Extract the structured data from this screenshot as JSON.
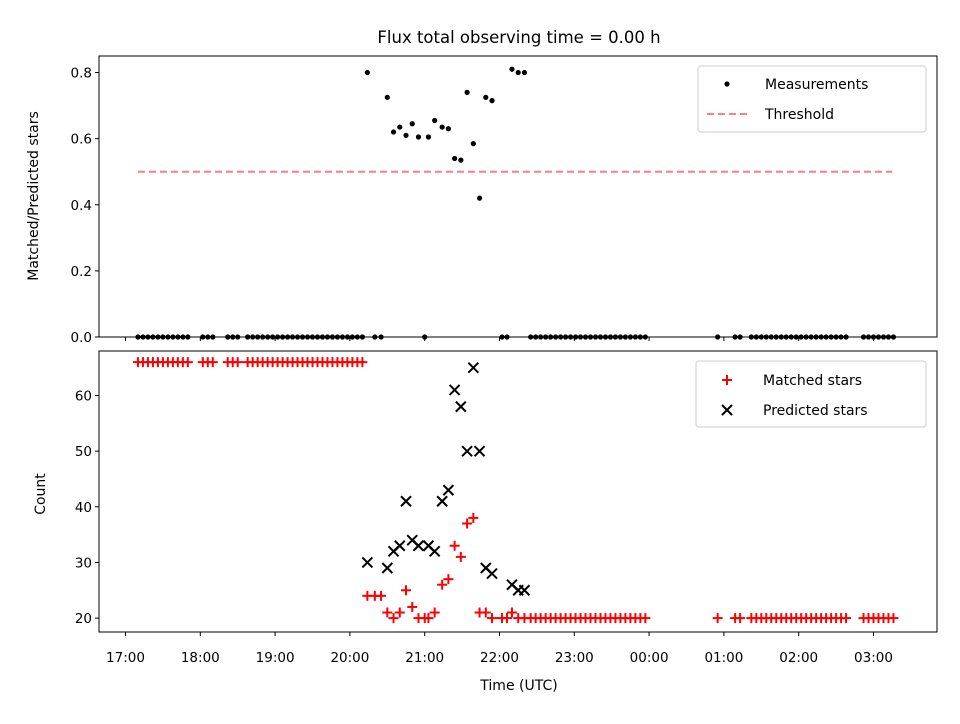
{
  "chart_data": [
    {
      "type": "scatter",
      "title": "Flux total observing time = 0.00 h",
      "ylabel": "Matched/Predicted stars",
      "ylim": [
        0,
        0.85
      ],
      "yticks": [
        "0.0",
        "0.2",
        "0.4",
        "0.6",
        "0.8"
      ],
      "threshold": {
        "value": 0.5,
        "x_start": "17:10",
        "x_end": "03:15"
      },
      "legend": {
        "placement": "upper right",
        "entries": [
          "Measurements",
          "Threshold"
        ]
      },
      "series": [
        {
          "name": "Measurements",
          "color": "#000000",
          "points": [
            [
              "17:10",
              0.0
            ],
            [
              "17:14",
              0.0
            ],
            [
              "17:18",
              0.0
            ],
            [
              "17:22",
              0.0
            ],
            [
              "17:26",
              0.0
            ],
            [
              "17:30",
              0.0
            ],
            [
              "17:34",
              0.0
            ],
            [
              "17:38",
              0.0
            ],
            [
              "17:42",
              0.0
            ],
            [
              "17:46",
              0.0
            ],
            [
              "17:50",
              0.0
            ],
            [
              "18:02",
              0.0
            ],
            [
              "18:06",
              0.0
            ],
            [
              "18:10",
              0.0
            ],
            [
              "18:22",
              0.0
            ],
            [
              "18:26",
              0.0
            ],
            [
              "18:30",
              0.0
            ],
            [
              "18:38",
              0.0
            ],
            [
              "18:42",
              0.0
            ],
            [
              "18:46",
              0.0
            ],
            [
              "18:50",
              0.0
            ],
            [
              "18:54",
              0.0
            ],
            [
              "18:58",
              0.0
            ],
            [
              "19:02",
              0.0
            ],
            [
              "19:06",
              0.0
            ],
            [
              "19:10",
              0.0
            ],
            [
              "19:14",
              0.0
            ],
            [
              "19:18",
              0.0
            ],
            [
              "19:22",
              0.0
            ],
            [
              "19:26",
              0.0
            ],
            [
              "19:30",
              0.0
            ],
            [
              "19:34",
              0.0
            ],
            [
              "19:38",
              0.0
            ],
            [
              "19:42",
              0.0
            ],
            [
              "19:46",
              0.0
            ],
            [
              "19:50",
              0.0
            ],
            [
              "19:54",
              0.0
            ],
            [
              "19:58",
              0.0
            ],
            [
              "20:02",
              0.0
            ],
            [
              "20:06",
              0.0
            ],
            [
              "20:10",
              0.0
            ],
            [
              "20:14",
              0.8
            ],
            [
              "20:20",
              0.0
            ],
            [
              "20:25",
              0.0
            ],
            [
              "20:30",
              0.725
            ],
            [
              "20:35",
              0.62
            ],
            [
              "20:40",
              0.635
            ],
            [
              "20:45",
              0.61
            ],
            [
              "20:50",
              0.645
            ],
            [
              "20:55",
              0.605
            ],
            [
              "21:00",
              0.0
            ],
            [
              "21:03",
              0.605
            ],
            [
              "21:08",
              0.655
            ],
            [
              "21:14",
              0.635
            ],
            [
              "21:19",
              0.63
            ],
            [
              "21:24",
              0.54
            ],
            [
              "21:29",
              0.535
            ],
            [
              "21:34",
              0.74
            ],
            [
              "21:39",
              0.585
            ],
            [
              "21:44",
              0.42
            ],
            [
              "21:49",
              0.725
            ],
            [
              "21:54",
              0.715
            ],
            [
              "22:02",
              0.0
            ],
            [
              "22:06",
              0.0
            ],
            [
              "22:10",
              0.81
            ],
            [
              "22:15",
              0.8
            ],
            [
              "22:20",
              0.8
            ],
            [
              "22:25",
              0.0
            ],
            [
              "22:29",
              0.0
            ],
            [
              "22:33",
              0.0
            ],
            [
              "22:37",
              0.0
            ],
            [
              "22:41",
              0.0
            ],
            [
              "22:45",
              0.0
            ],
            [
              "22:49",
              0.0
            ],
            [
              "22:53",
              0.0
            ],
            [
              "22:57",
              0.0
            ],
            [
              "23:01",
              0.0
            ],
            [
              "23:05",
              0.0
            ],
            [
              "23:09",
              0.0
            ],
            [
              "23:13",
              0.0
            ],
            [
              "23:17",
              0.0
            ],
            [
              "23:21",
              0.0
            ],
            [
              "23:25",
              0.0
            ],
            [
              "23:29",
              0.0
            ],
            [
              "23:33",
              0.0
            ],
            [
              "23:37",
              0.0
            ],
            [
              "23:41",
              0.0
            ],
            [
              "23:45",
              0.0
            ],
            [
              "23:49",
              0.0
            ],
            [
              "23:53",
              0.0
            ],
            [
              "23:57",
              0.0
            ],
            [
              "00:55",
              0.0
            ],
            [
              "01:09",
              0.0
            ],
            [
              "01:13",
              0.0
            ],
            [
              "01:22",
              0.0
            ],
            [
              "01:26",
              0.0
            ],
            [
              "01:30",
              0.0
            ],
            [
              "01:34",
              0.0
            ],
            [
              "01:38",
              0.0
            ],
            [
              "01:42",
              0.0
            ],
            [
              "01:46",
              0.0
            ],
            [
              "01:50",
              0.0
            ],
            [
              "01:54",
              0.0
            ],
            [
              "01:58",
              0.0
            ],
            [
              "02:02",
              0.0
            ],
            [
              "02:06",
              0.0
            ],
            [
              "02:10",
              0.0
            ],
            [
              "02:14",
              0.0
            ],
            [
              "02:18",
              0.0
            ],
            [
              "02:22",
              0.0
            ],
            [
              "02:26",
              0.0
            ],
            [
              "02:30",
              0.0
            ],
            [
              "02:34",
              0.0
            ],
            [
              "02:38",
              0.0
            ],
            [
              "02:52",
              0.0
            ],
            [
              "02:56",
              0.0
            ],
            [
              "03:00",
              0.0
            ],
            [
              "03:04",
              0.0
            ],
            [
              "03:08",
              0.0
            ],
            [
              "03:12",
              0.0
            ],
            [
              "03:16",
              0.0
            ]
          ]
        }
      ]
    },
    {
      "type": "scatter",
      "xlabel": "Time (UTC)",
      "ylabel": "Count",
      "ylim": [
        17.5,
        68
      ],
      "yticks": [
        "20",
        "30",
        "40",
        "50",
        "60"
      ],
      "xticks": [
        "17:00",
        "18:00",
        "19:00",
        "20:00",
        "21:00",
        "22:00",
        "23:00",
        "00:00",
        "01:00",
        "02:00",
        "03:00"
      ],
      "legend": {
        "placement": "upper right",
        "entries": [
          "Matched stars",
          "Predicted stars"
        ]
      },
      "series": [
        {
          "name": "Matched stars",
          "color": "#ff0000",
          "marker": "+",
          "points": [
            [
              "17:10",
              66
            ],
            [
              "17:14",
              66
            ],
            [
              "17:18",
              66
            ],
            [
              "17:22",
              66
            ],
            [
              "17:26",
              66
            ],
            [
              "17:30",
              66
            ],
            [
              "17:34",
              66
            ],
            [
              "17:38",
              66
            ],
            [
              "17:42",
              66
            ],
            [
              "17:46",
              66
            ],
            [
              "17:50",
              66
            ],
            [
              "18:02",
              66
            ],
            [
              "18:06",
              66
            ],
            [
              "18:10",
              66
            ],
            [
              "18:22",
              66
            ],
            [
              "18:26",
              66
            ],
            [
              "18:30",
              66
            ],
            [
              "18:38",
              66
            ],
            [
              "18:42",
              66
            ],
            [
              "18:46",
              66
            ],
            [
              "18:50",
              66
            ],
            [
              "18:54",
              66
            ],
            [
              "18:58",
              66
            ],
            [
              "19:02",
              66
            ],
            [
              "19:06",
              66
            ],
            [
              "19:10",
              66
            ],
            [
              "19:14",
              66
            ],
            [
              "19:18",
              66
            ],
            [
              "19:22",
              66
            ],
            [
              "19:26",
              66
            ],
            [
              "19:30",
              66
            ],
            [
              "19:34",
              66
            ],
            [
              "19:38",
              66
            ],
            [
              "19:42",
              66
            ],
            [
              "19:46",
              66
            ],
            [
              "19:50",
              66
            ],
            [
              "19:54",
              66
            ],
            [
              "19:58",
              66
            ],
            [
              "20:02",
              66
            ],
            [
              "20:06",
              66
            ],
            [
              "20:10",
              66
            ],
            [
              "20:14",
              24
            ],
            [
              "20:20",
              24
            ],
            [
              "20:25",
              24
            ],
            [
              "20:30",
              21
            ],
            [
              "20:35",
              20
            ],
            [
              "20:40",
              21
            ],
            [
              "20:45",
              25
            ],
            [
              "20:50",
              22
            ],
            [
              "20:55",
              20
            ],
            [
              "21:00",
              20
            ],
            [
              "21:03",
              20
            ],
            [
              "21:08",
              21
            ],
            [
              "21:14",
              26
            ],
            [
              "21:19",
              27
            ],
            [
              "21:24",
              33
            ],
            [
              "21:29",
              31
            ],
            [
              "21:34",
              37
            ],
            [
              "21:39",
              38
            ],
            [
              "21:44",
              21
            ],
            [
              "21:49",
              21
            ],
            [
              "21:54",
              20
            ],
            [
              "22:02",
              20
            ],
            [
              "22:06",
              20
            ],
            [
              "22:10",
              21
            ],
            [
              "22:15",
              20
            ],
            [
              "22:20",
              20
            ],
            [
              "22:25",
              20
            ],
            [
              "22:29",
              20
            ],
            [
              "22:33",
              20
            ],
            [
              "22:37",
              20
            ],
            [
              "22:41",
              20
            ],
            [
              "22:45",
              20
            ],
            [
              "22:49",
              20
            ],
            [
              "22:53",
              20
            ],
            [
              "22:57",
              20
            ],
            [
              "23:01",
              20
            ],
            [
              "23:05",
              20
            ],
            [
              "23:09",
              20
            ],
            [
              "23:13",
              20
            ],
            [
              "23:17",
              20
            ],
            [
              "23:21",
              20
            ],
            [
              "23:25",
              20
            ],
            [
              "23:29",
              20
            ],
            [
              "23:33",
              20
            ],
            [
              "23:37",
              20
            ],
            [
              "23:41",
              20
            ],
            [
              "23:45",
              20
            ],
            [
              "23:49",
              20
            ],
            [
              "23:53",
              20
            ],
            [
              "23:57",
              20
            ],
            [
              "00:55",
              20
            ],
            [
              "01:09",
              20
            ],
            [
              "01:13",
              20
            ],
            [
              "01:22",
              20
            ],
            [
              "01:26",
              20
            ],
            [
              "01:30",
              20
            ],
            [
              "01:34",
              20
            ],
            [
              "01:38",
              20
            ],
            [
              "01:42",
              20
            ],
            [
              "01:46",
              20
            ],
            [
              "01:50",
              20
            ],
            [
              "01:54",
              20
            ],
            [
              "01:58",
              20
            ],
            [
              "02:02",
              20
            ],
            [
              "02:06",
              20
            ],
            [
              "02:10",
              20
            ],
            [
              "02:14",
              20
            ],
            [
              "02:18",
              20
            ],
            [
              "02:22",
              20
            ],
            [
              "02:26",
              20
            ],
            [
              "02:30",
              20
            ],
            [
              "02:34",
              20
            ],
            [
              "02:38",
              20
            ],
            [
              "02:52",
              20
            ],
            [
              "02:56",
              20
            ],
            [
              "03:00",
              20
            ],
            [
              "03:04",
              20
            ],
            [
              "03:08",
              20
            ],
            [
              "03:12",
              20
            ],
            [
              "03:16",
              20
            ]
          ]
        },
        {
          "name": "Predicted stars",
          "color": "#000000",
          "marker": "x",
          "points": [
            [
              "20:14",
              30
            ],
            [
              "20:30",
              29
            ],
            [
              "20:35",
              32
            ],
            [
              "20:40",
              33
            ],
            [
              "20:45",
              41
            ],
            [
              "20:50",
              34
            ],
            [
              "20:55",
              33
            ],
            [
              "21:03",
              33
            ],
            [
              "21:08",
              32
            ],
            [
              "21:14",
              41
            ],
            [
              "21:19",
              43
            ],
            [
              "21:24",
              61
            ],
            [
              "21:29",
              58
            ],
            [
              "21:34",
              50
            ],
            [
              "21:39",
              65
            ],
            [
              "21:44",
              50
            ],
            [
              "21:49",
              29
            ],
            [
              "21:54",
              28
            ],
            [
              "22:10",
              26
            ],
            [
              "22:15",
              25
            ],
            [
              "22:20",
              25
            ]
          ]
        }
      ]
    }
  ]
}
